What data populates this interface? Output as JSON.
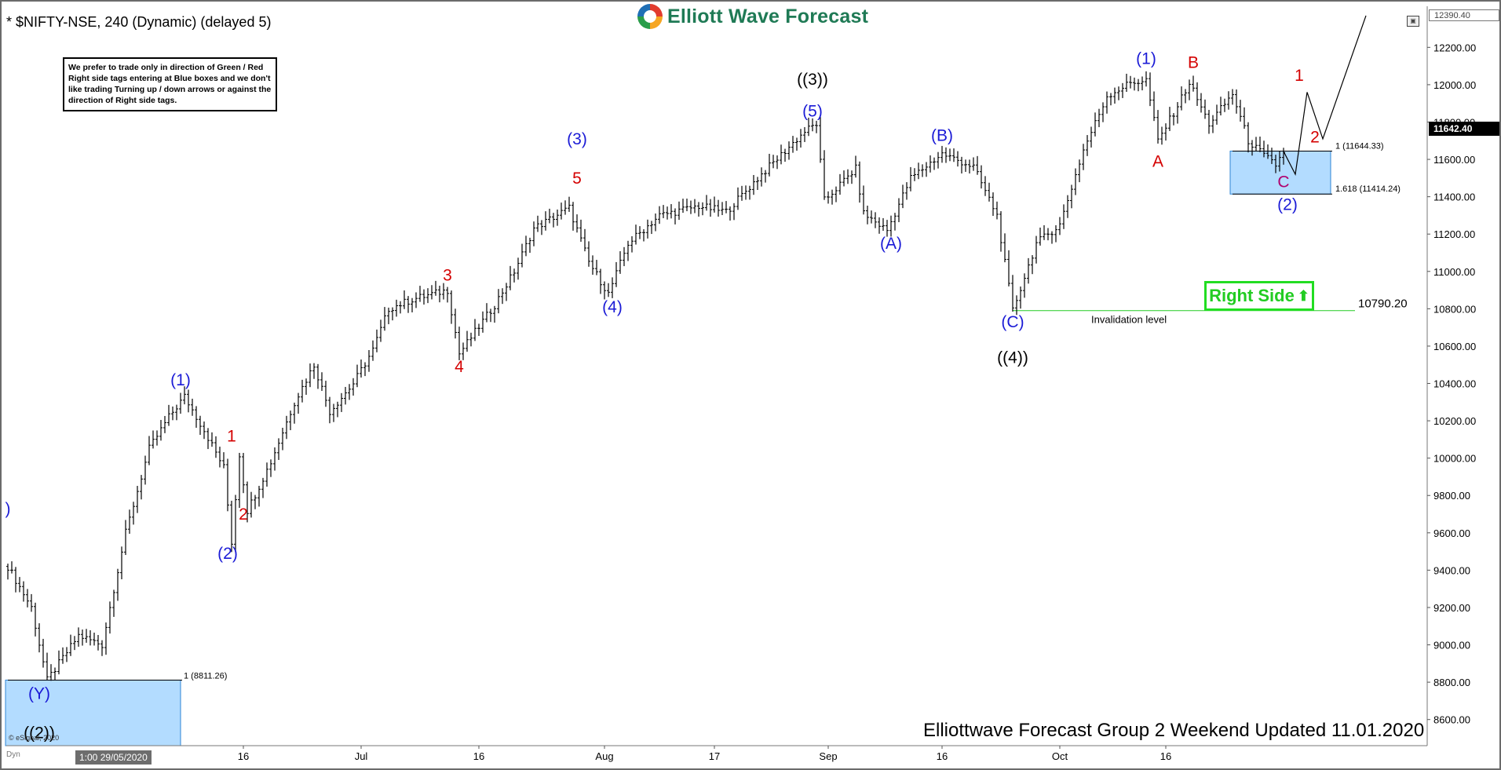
{
  "header": {
    "symbol_title": "* $NIFTY-NSE, 240 (Dynamic) (delayed 5)",
    "logo_text": "Elliott Wave Forecast"
  },
  "note": "We prefer to trade only in direction of Green / Red Right side tags entering at Blue boxes and we don't like trading Turning up / down arrows or against the direction of Right side tags.",
  "right_side_tag": {
    "label": "Right Side",
    "arrow": "⬆",
    "color": "#22dd22"
  },
  "footer": "Elliottwave Forecast Group 2 Weekend Updated 11.01.2020",
  "esignal": "© eSignal, 2020",
  "dyn_label": "Dyn",
  "date_box": "1:00 29/05/2020",
  "corner_icon": "window-icon",
  "price_tags": {
    "current": "11642.40",
    "top": "12390.40"
  },
  "chart_data": {
    "type": "ohlc",
    "ylim": [
      8460,
      12420
    ],
    "y_ticks": [
      8600,
      8800,
      9000,
      9200,
      9400,
      9600,
      9800,
      10000,
      10200,
      10400,
      10600,
      10800,
      11000,
      11200,
      11400,
      11600,
      11800,
      12000,
      12200
    ],
    "y_tick_labels": [
      "8600.00",
      "8800.00",
      "9000.00",
      "9200.00",
      "9400.00",
      "9600.00",
      "9800.00",
      "10000.00",
      "10200.00",
      "10400.00",
      "10600.00",
      "10800.00",
      "11000.00",
      "11200.00",
      "11400.00",
      "11600.00",
      "11800.00",
      "12000.00",
      "12200.00"
    ],
    "x_ticks": [
      {
        "label": "16",
        "bar": 60
      },
      {
        "label": "Jul",
        "bar": 90
      },
      {
        "label": "16",
        "bar": 120
      },
      {
        "label": "Aug",
        "bar": 152
      },
      {
        "label": "17",
        "bar": 180
      },
      {
        "label": "Sep",
        "bar": 209
      },
      {
        "label": "16",
        "bar": 238
      },
      {
        "label": "Oct",
        "bar": 268
      },
      {
        "label": "16",
        "bar": 295
      }
    ],
    "x_range": [
      0,
      362
    ],
    "price_path": [
      [
        0,
        9420
      ],
      [
        6,
        9200
      ],
      [
        10,
        8810
      ],
      [
        18,
        9050
      ],
      [
        24,
        9000
      ],
      [
        30,
        9600
      ],
      [
        36,
        10050
      ],
      [
        41,
        10220
      ],
      [
        45,
        10330
      ],
      [
        50,
        10150
      ],
      [
        55,
        9950
      ],
      [
        57,
        9550
      ],
      [
        59,
        10020
      ],
      [
        61,
        9720
      ],
      [
        67,
        9980
      ],
      [
        73,
        10300
      ],
      [
        78,
        10500
      ],
      [
        82,
        10250
      ],
      [
        88,
        10400
      ],
      [
        93,
        10580
      ],
      [
        97,
        10800
      ],
      [
        103,
        10850
      ],
      [
        112,
        10900
      ],
      [
        115,
        10560
      ],
      [
        124,
        10820
      ],
      [
        129,
        11000
      ],
      [
        134,
        11230
      ],
      [
        143,
        11340
      ],
      [
        148,
        11050
      ],
      [
        153,
        10880
      ],
      [
        158,
        11150
      ],
      [
        166,
        11300
      ],
      [
        176,
        11350
      ],
      [
        183,
        11320
      ],
      [
        192,
        11520
      ],
      [
        203,
        11750
      ],
      [
        206,
        11790
      ],
      [
        208,
        11380
      ],
      [
        216,
        11550
      ],
      [
        218,
        11310
      ],
      [
        224,
        11220
      ],
      [
        230,
        11500
      ],
      [
        238,
        11630
      ],
      [
        246,
        11560
      ],
      [
        252,
        11300
      ],
      [
        256,
        10790
      ],
      [
        262,
        11150
      ],
      [
        268,
        11250
      ],
      [
        274,
        11650
      ],
      [
        280,
        11940
      ],
      [
        286,
        12010
      ],
      [
        290,
        12025
      ],
      [
        293,
        11700
      ],
      [
        297,
        11850
      ],
      [
        301,
        12010
      ],
      [
        306,
        11790
      ],
      [
        312,
        11950
      ],
      [
        316,
        11700
      ],
      [
        320,
        11620
      ],
      [
        323,
        11570
      ],
      [
        325,
        11643
      ]
    ],
    "wave_labels": [
      {
        "text": "(1)",
        "bar": 44,
        "price": 10390,
        "color": "#1b1bd6"
      },
      {
        "text": "1",
        "bar": 57,
        "price": 10090,
        "color": "#d40000"
      },
      {
        "text": "2",
        "bar": 60,
        "price": 9670,
        "color": "#d40000"
      },
      {
        "text": "(2)",
        "bar": 56,
        "price": 9460,
        "color": "#1b1bd6"
      },
      {
        "text": "3",
        "bar": 112,
        "price": 10950,
        "color": "#d40000"
      },
      {
        "text": "4",
        "bar": 115,
        "price": 10460,
        "color": "#d40000"
      },
      {
        "text": "(3)",
        "bar": 145,
        "price": 11680,
        "color": "#1b1bd6"
      },
      {
        "text": "5",
        "bar": 145,
        "price": 11470,
        "color": "#d40000"
      },
      {
        "text": "(4)",
        "bar": 154,
        "price": 10780,
        "color": "#1b1bd6"
      },
      {
        "text": "((3))",
        "bar": 205,
        "price": 12000,
        "color": "#000000"
      },
      {
        "text": "(5)",
        "bar": 205,
        "price": 11830,
        "color": "#1b1bd6"
      },
      {
        "text": "(A)",
        "bar": 225,
        "price": 11120,
        "color": "#1b1bd6"
      },
      {
        "text": "(B)",
        "bar": 238,
        "price": 11700,
        "color": "#1b1bd6"
      },
      {
        "text": "(C)",
        "bar": 256,
        "price": 10700,
        "color": "#1b1bd6"
      },
      {
        "text": "((4))",
        "bar": 256,
        "price": 10510,
        "color": "#000000"
      },
      {
        "text": "(1)",
        "bar": 290,
        "price": 12110,
        "color": "#1b1bd6"
      },
      {
        "text": "A",
        "bar": 293,
        "price": 11560,
        "color": "#d40000"
      },
      {
        "text": "B",
        "bar": 302,
        "price": 12090,
        "color": "#d40000"
      },
      {
        "text": "C",
        "bar": 325,
        "price": 11450,
        "color": "#b0006e"
      },
      {
        "text": "(2)",
        "bar": 326,
        "price": 11330,
        "color": "#1b1bd6"
      },
      {
        "text": "1",
        "bar": 329,
        "price": 12020,
        "color": "#d40000"
      },
      {
        "text": "2",
        "bar": 333,
        "price": 11690,
        "color": "#d40000"
      },
      {
        "text": ")",
        "bar": 0,
        "price": 9700,
        "color": "#1b1bd6"
      },
      {
        "text": "(Y)",
        "bar": 8,
        "price": 8710,
        "color": "#1b1bd6"
      },
      {
        "text": "((2))",
        "bar": 8,
        "price": 8500,
        "color": "#000000"
      }
    ],
    "projection_path": [
      [
        325,
        11643
      ],
      [
        328,
        11520
      ],
      [
        331,
        11960
      ],
      [
        335,
        11710
      ],
      [
        346,
        12370
      ]
    ],
    "blue_boxes": [
      {
        "x0": 0,
        "x1": 44,
        "y0": 8460,
        "y1": 8811.26,
        "label": "1 (8811.26)"
      },
      {
        "x0": 312,
        "x1": 337,
        "y0": 11414.24,
        "y1": 11644.33,
        "label_top": "1 (11644.33)",
        "label_bottom": "1.618 (11414.24)"
      }
    ],
    "invalidation": {
      "value": 10790.2,
      "value_label": "10790.20",
      "label": "Invalidation level",
      "x0": 256,
      "x1": 340
    }
  }
}
